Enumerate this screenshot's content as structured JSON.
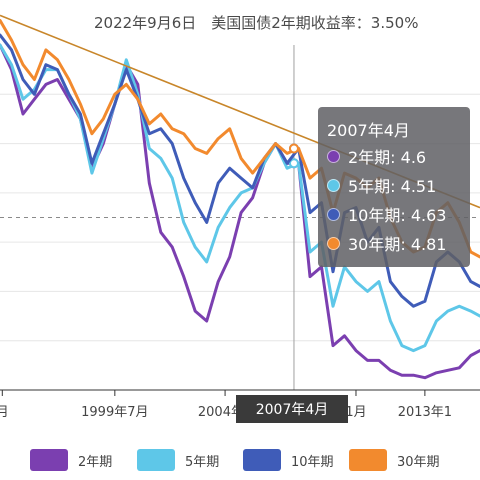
{
  "header": {
    "text": "2022年9月6日　美国国债2年期收益率：3.50%"
  },
  "tooltip": {
    "title": "2007年4月",
    "rows": [
      {
        "label": "2年期: 4.6",
        "color": "#7b3fb0"
      },
      {
        "label": "5年期: 4.51",
        "color": "#5ec7e8"
      },
      {
        "label": "10年期: 4.63",
        "color": "#3f5cb8"
      },
      {
        "label": "30年期: 4.81",
        "color": "#f28a2e"
      }
    ]
  },
  "axis_pointer_label": "2007年4月",
  "chart_data": {
    "type": "line",
    "title": "",
    "xlabel": "",
    "ylabel": "",
    "x_tick_labels": [
      "月",
      "1999年7月",
      "2004年4",
      "1月",
      "2013年1"
    ],
    "x_ticks_years": [
      1994.6,
      1999.5,
      2004.3,
      2010.0,
      2013.0
    ],
    "xlim": [
      1994.5,
      2015.4
    ],
    "ylim": [
      0,
      7
    ],
    "grid": true,
    "legend_placement": "bottom",
    "x": [
      1994.5,
      1995.0,
      1995.5,
      1996.0,
      1996.5,
      1997.0,
      1997.5,
      1998.0,
      1998.5,
      1999.0,
      1999.5,
      2000.0,
      2000.5,
      2001.0,
      2001.5,
      2002.0,
      2002.5,
      2003.0,
      2003.5,
      2004.0,
      2004.5,
      2005.0,
      2005.5,
      2006.0,
      2006.5,
      2007.0,
      2007.5,
      2008.0,
      2008.5,
      2009.0,
      2009.5,
      2010.0,
      2010.5,
      2011.0,
      2011.5,
      2012.0,
      2012.5,
      2013.0,
      2013.5,
      2014.0,
      2014.5,
      2015.0,
      2015.4
    ],
    "series": [
      {
        "name": "2年期",
        "color": "#7b3fb0",
        "values": [
          7.0,
          6.5,
          5.6,
          5.9,
          6.2,
          6.3,
          5.9,
          5.5,
          4.5,
          5.0,
          5.8,
          6.6,
          6.2,
          4.2,
          3.2,
          2.9,
          2.3,
          1.6,
          1.4,
          2.2,
          2.7,
          3.6,
          3.9,
          4.6,
          5.0,
          4.6,
          4.6,
          2.3,
          2.5,
          0.9,
          1.1,
          0.8,
          0.6,
          0.6,
          0.4,
          0.3,
          0.3,
          0.25,
          0.35,
          0.4,
          0.45,
          0.7,
          0.8
        ]
      },
      {
        "name": "5年期",
        "color": "#5ec7e8",
        "values": [
          7.0,
          6.6,
          5.9,
          6.1,
          6.5,
          6.5,
          6.0,
          5.5,
          4.4,
          5.1,
          5.8,
          6.7,
          6.0,
          4.9,
          4.7,
          4.3,
          3.4,
          2.9,
          2.6,
          3.3,
          3.7,
          4.0,
          4.1,
          4.6,
          5.0,
          4.5,
          4.6,
          2.8,
          3.0,
          1.7,
          2.5,
          2.2,
          2.0,
          2.2,
          1.4,
          0.9,
          0.8,
          0.9,
          1.4,
          1.6,
          1.7,
          1.6,
          1.5
        ]
      },
      {
        "name": "10年期",
        "color": "#3f5cb8",
        "values": [
          7.2,
          6.9,
          6.3,
          6.0,
          6.6,
          6.5,
          6.0,
          5.6,
          4.6,
          5.2,
          5.8,
          6.5,
          5.9,
          5.2,
          5.3,
          5.0,
          4.3,
          3.8,
          3.4,
          4.2,
          4.5,
          4.3,
          4.1,
          4.7,
          5.0,
          4.6,
          4.9,
          3.6,
          3.8,
          2.4,
          3.6,
          3.7,
          3.0,
          3.3,
          2.2,
          1.9,
          1.7,
          1.8,
          2.6,
          2.8,
          2.6,
          2.2,
          2.1
        ]
      },
      {
        "name": "30年期",
        "color": "#f28a2e",
        "values": [
          7.5,
          7.1,
          6.6,
          6.3,
          6.9,
          6.7,
          6.3,
          5.8,
          5.2,
          5.5,
          6.0,
          6.2,
          5.9,
          5.4,
          5.6,
          5.3,
          5.2,
          4.9,
          4.8,
          5.1,
          5.3,
          4.7,
          4.4,
          4.7,
          5.0,
          4.8,
          4.9,
          4.3,
          4.5,
          3.6,
          4.4,
          4.3,
          4.1,
          4.3,
          3.5,
          3.0,
          2.8,
          2.9,
          3.6,
          3.8,
          3.4,
          2.8,
          2.7
        ]
      }
    ],
    "trend_line": {
      "color": "#c8862a",
      "from": [
        1994.5,
        7.6
      ],
      "to": [
        2015.4,
        3.7
      ]
    },
    "reference_line_y": 3.5,
    "pointer_x": 2007.3
  }
}
